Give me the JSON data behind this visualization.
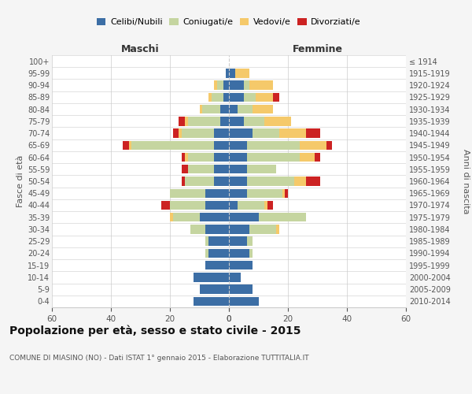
{
  "age_groups": [
    "0-4",
    "5-9",
    "10-14",
    "15-19",
    "20-24",
    "25-29",
    "30-34",
    "35-39",
    "40-44",
    "45-49",
    "50-54",
    "55-59",
    "60-64",
    "65-69",
    "70-74",
    "75-79",
    "80-84",
    "85-89",
    "90-94",
    "95-99",
    "100+"
  ],
  "birth_years": [
    "2010-2014",
    "2005-2009",
    "2000-2004",
    "1995-1999",
    "1990-1994",
    "1985-1989",
    "1980-1984",
    "1975-1979",
    "1970-1974",
    "1965-1969",
    "1960-1964",
    "1955-1959",
    "1950-1954",
    "1945-1949",
    "1940-1944",
    "1935-1939",
    "1930-1934",
    "1925-1929",
    "1920-1924",
    "1915-1919",
    "≤ 1914"
  ],
  "maschi": {
    "celibi": [
      12,
      10,
      12,
      8,
      7,
      7,
      8,
      10,
      8,
      8,
      5,
      5,
      5,
      5,
      5,
      3,
      3,
      2,
      2,
      1,
      0
    ],
    "coniugati": [
      0,
      0,
      0,
      0,
      1,
      1,
      5,
      9,
      12,
      12,
      10,
      9,
      9,
      28,
      11,
      11,
      6,
      4,
      2,
      0,
      0
    ],
    "vedovi": [
      0,
      0,
      0,
      0,
      0,
      0,
      0,
      1,
      0,
      0,
      0,
      0,
      1,
      1,
      1,
      1,
      1,
      1,
      1,
      0,
      0
    ],
    "divorziati": [
      0,
      0,
      0,
      0,
      0,
      0,
      0,
      0,
      3,
      0,
      1,
      2,
      1,
      2,
      2,
      2,
      0,
      0,
      0,
      0,
      0
    ]
  },
  "femmine": {
    "nubili": [
      10,
      8,
      4,
      8,
      7,
      6,
      7,
      10,
      3,
      6,
      6,
      6,
      6,
      6,
      8,
      5,
      3,
      5,
      5,
      2,
      0
    ],
    "coniugate": [
      0,
      0,
      0,
      0,
      1,
      2,
      9,
      16,
      9,
      12,
      16,
      10,
      18,
      18,
      9,
      7,
      5,
      4,
      2,
      0,
      0
    ],
    "vedove": [
      0,
      0,
      0,
      0,
      0,
      0,
      1,
      0,
      1,
      1,
      4,
      0,
      5,
      9,
      9,
      9,
      7,
      6,
      8,
      5,
      0
    ],
    "divorziate": [
      0,
      0,
      0,
      0,
      0,
      0,
      0,
      0,
      2,
      1,
      5,
      0,
      2,
      2,
      5,
      0,
      0,
      2,
      0,
      0,
      0
    ]
  },
  "colors": {
    "celibi": "#3c6ea5",
    "coniugati": "#c5d5a0",
    "vedovi": "#f5c96a",
    "divorziati": "#cc2222"
  },
  "legend_labels": [
    "Celibi/Nubili",
    "Coniugati/e",
    "Vedovi/e",
    "Divorziati/e"
  ],
  "title": "Popolazione per età, sesso e stato civile - 2015",
  "subtitle": "COMUNE DI MIASINO (NO) - Dati ISTAT 1° gennaio 2015 - Elaborazione TUTTITALIA.IT",
  "ylabel_left": "Fasce di età",
  "ylabel_right": "Anni di nascita",
  "xlabel_maschi": "Maschi",
  "xlabel_femmine": "Femmine",
  "xlim": 60,
  "bg_color": "#f5f5f5",
  "plot_bg": "#ffffff",
  "grid_color": "#cccccc"
}
